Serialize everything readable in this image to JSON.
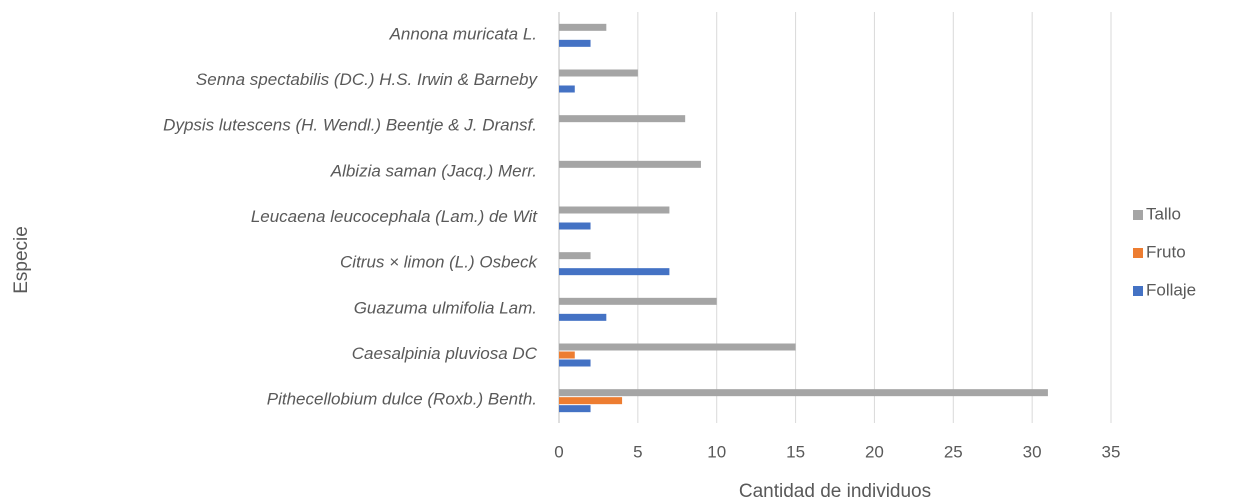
{
  "chart_data": {
    "type": "hbar",
    "xlabel": "Cantidad de individuos",
    "ylabel": "Especie",
    "categories": [
      "Pithecellobium dulce (Roxb.) Benth.",
      "Caesalpinia pluviosa DC",
      "Guazuma ulmifolia Lam.",
      "Citrus × limon (L.) Osbeck",
      "Leucaena leucocephala (Lam.) de Wit",
      "Albizia saman (Jacq.) Merr.",
      "Dypsis lutescens (H. Wendl.) Beentje & J. Dransf.",
      "Senna spectabilis (DC.) H.S. Irwin & Barneby",
      "Annona muricata L."
    ],
    "series": [
      {
        "name": "Follaje",
        "color": "#4472c4",
        "values": [
          2,
          2,
          3,
          7,
          2,
          0,
          0,
          1,
          2
        ]
      },
      {
        "name": "Fruto",
        "color": "#ed7d31",
        "values": [
          4,
          1,
          0,
          0,
          0,
          0,
          0,
          0,
          0
        ]
      },
      {
        "name": "Tallo",
        "color": "#a5a5a5",
        "values": [
          31,
          15,
          10,
          2,
          7,
          9,
          8,
          5,
          3
        ]
      }
    ],
    "xlim": [
      0,
      35
    ],
    "xticks": [
      0,
      5,
      10,
      15,
      20,
      25,
      30,
      35
    ],
    "grid": true,
    "legend": "right"
  }
}
